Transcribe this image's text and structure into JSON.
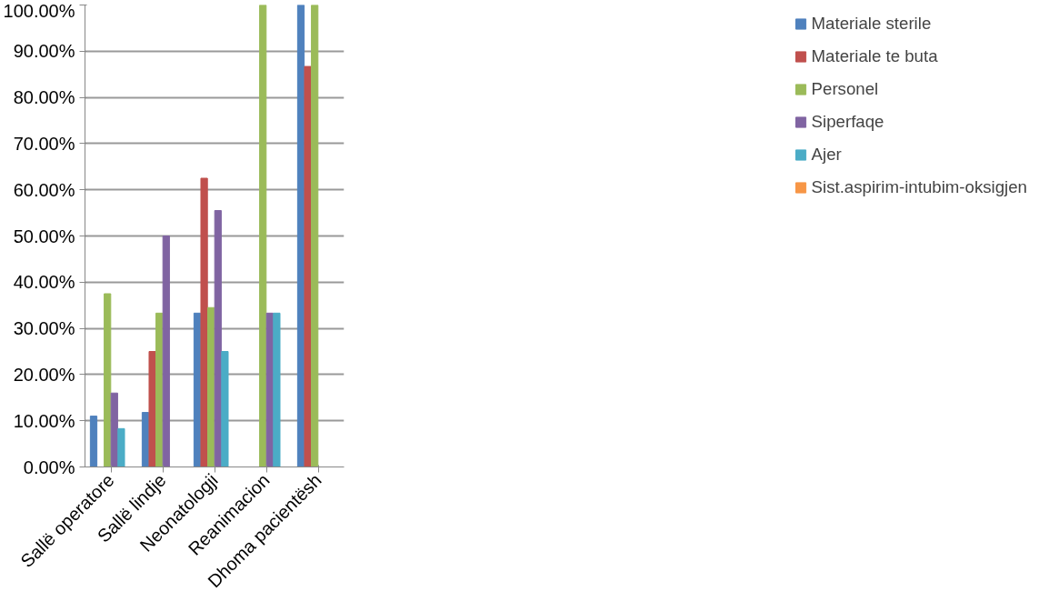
{
  "chart_data": {
    "type": "bar",
    "categories": [
      "Sallë operatore",
      "Sallë lindje",
      "Neonatologji",
      "Reanimacion",
      "Dhoma pacientësh"
    ],
    "series": [
      {
        "name": "Materiale sterile",
        "color": "#4f81bd",
        "values": [
          11,
          11.8,
          33.3,
          0,
          100
        ]
      },
      {
        "name": "Materiale te buta",
        "color": "#c0504d",
        "values": [
          0,
          25,
          62.5,
          0,
          86.7
        ]
      },
      {
        "name": "Personel",
        "color": "#9bbb59",
        "values": [
          37.5,
          33.3,
          34.5,
          100,
          100
        ]
      },
      {
        "name": "Siperfaqe",
        "color": "#8064a2",
        "values": [
          16,
          50,
          55.5,
          33.3,
          0
        ]
      },
      {
        "name": "Ajer",
        "color": "#4bacc6",
        "values": [
          8.3,
          0,
          25,
          33.3,
          0
        ]
      },
      {
        "name": "Sist.aspirim-intubim-oksigjen",
        "color": "#f79646",
        "values": [
          0,
          0,
          0,
          0,
          0
        ]
      }
    ],
    "ylim": [
      0,
      100
    ],
    "yticks": [
      {
        "value": 0,
        "label": "0.00%"
      },
      {
        "value": 10,
        "label": "10.00%"
      },
      {
        "value": 20,
        "label": "20.00%"
      },
      {
        "value": 30,
        "label": "30.00%"
      },
      {
        "value": 40,
        "label": "40.00%"
      },
      {
        "value": 50,
        "label": "50.00%"
      },
      {
        "value": 60,
        "label": "60.00%"
      },
      {
        "value": 70,
        "label": "70.00%"
      },
      {
        "value": 80,
        "label": "80.00%"
      },
      {
        "value": 90,
        "label": "90.00%"
      },
      {
        "value": 100,
        "label": "100.00%"
      }
    ],
    "grid": "y",
    "legend": "right"
  }
}
